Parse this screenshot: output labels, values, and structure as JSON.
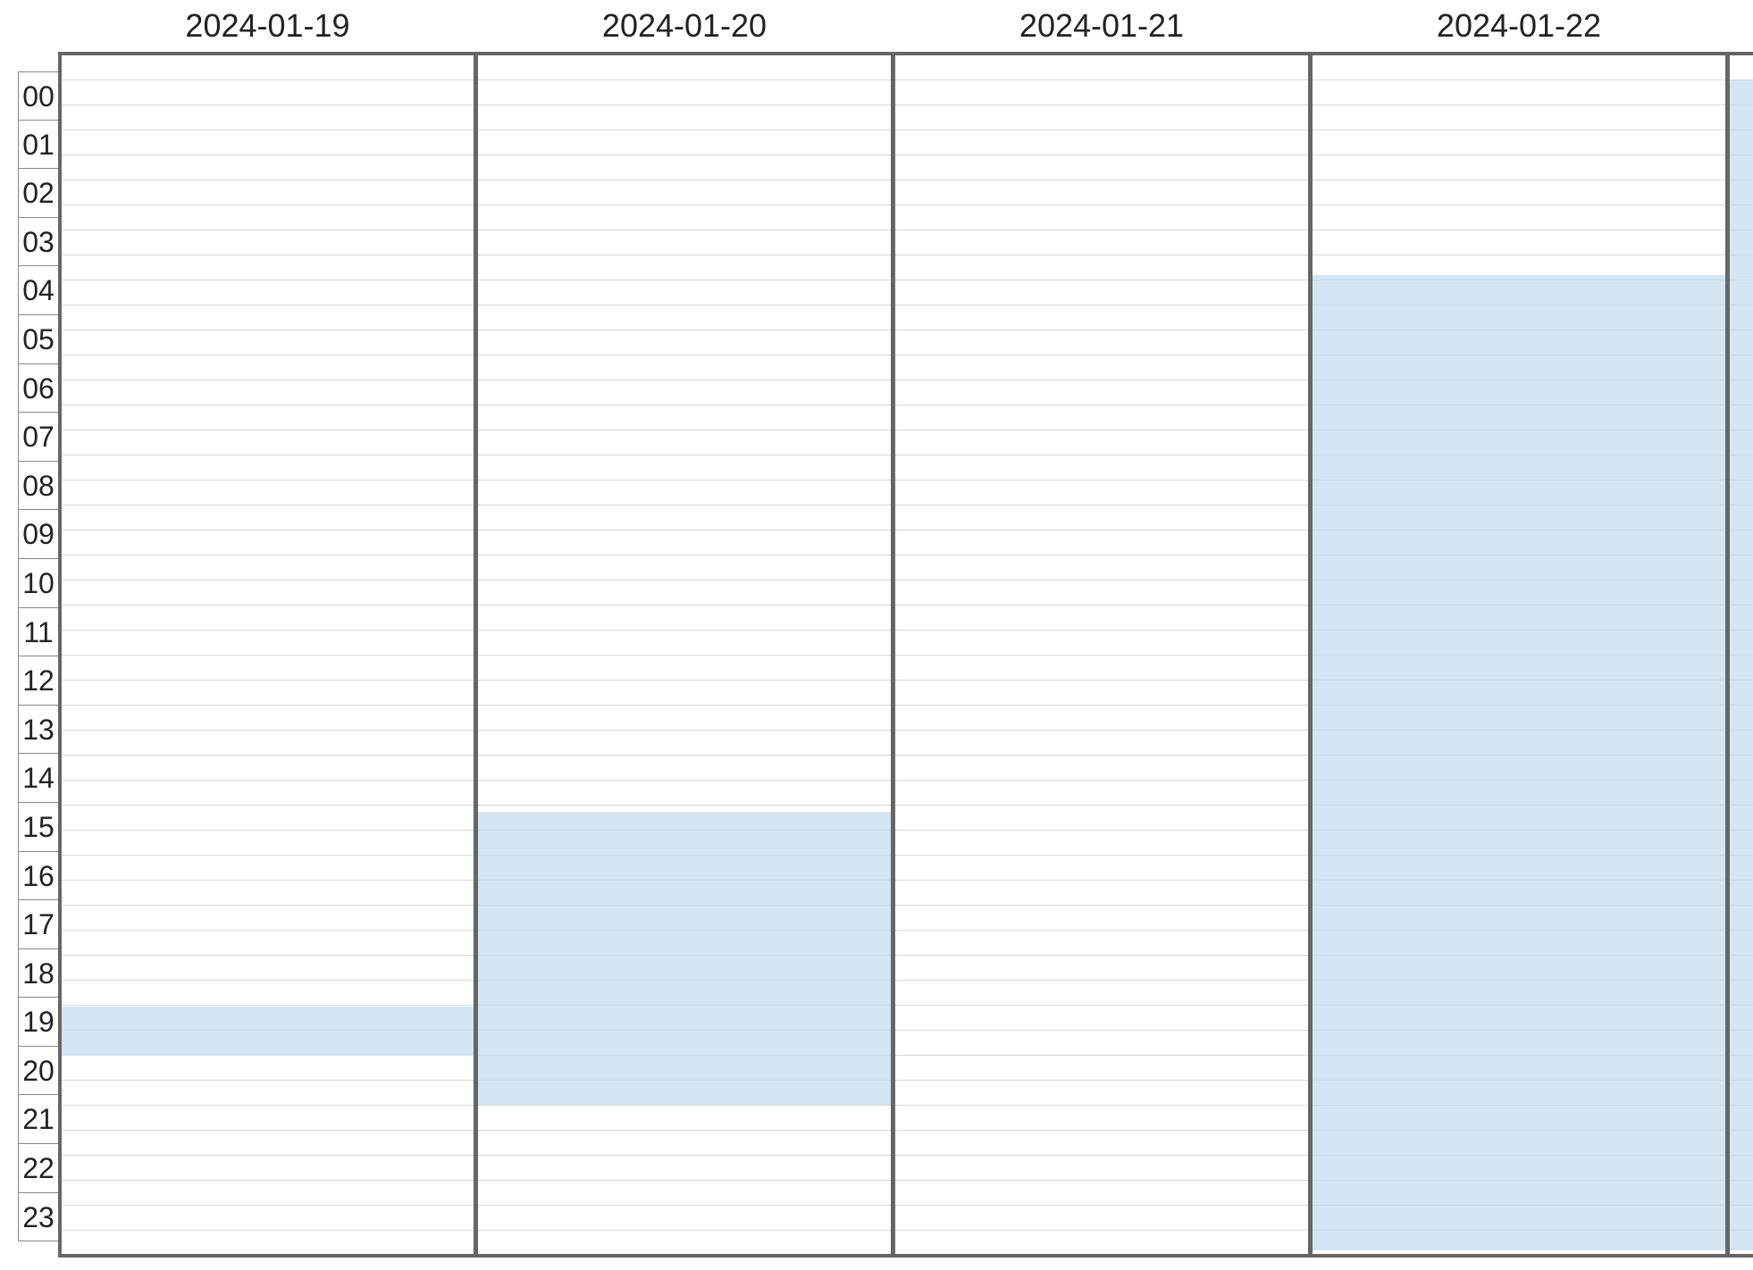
{
  "calendar": {
    "days": [
      {
        "label": "2024-01-19",
        "busy": [
          {
            "start": 19.0,
            "end": 20.0
          }
        ]
      },
      {
        "label": "2024-01-20",
        "busy": [
          {
            "start": 15.0,
            "end": 21.0
          }
        ]
      },
      {
        "label": "2024-01-21",
        "busy": []
      },
      {
        "label": "2024-01-22",
        "busy": [
          {
            "start": 4.0,
            "end": 24.0
          }
        ]
      },
      {
        "label": "",
        "busy": [
          {
            "start": 0.0,
            "end": 24.0
          }
        ]
      }
    ],
    "hours": [
      "00",
      "01",
      "02",
      "03",
      "04",
      "05",
      "06",
      "07",
      "08",
      "09",
      "10",
      "11",
      "12",
      "13",
      "14",
      "15",
      "16",
      "17",
      "18",
      "19",
      "20",
      "21",
      "22",
      "23"
    ],
    "colors": {
      "busy_fill": "#c4dcee",
      "grid_line": "#d8d8d8",
      "column_border": "#666666"
    }
  }
}
